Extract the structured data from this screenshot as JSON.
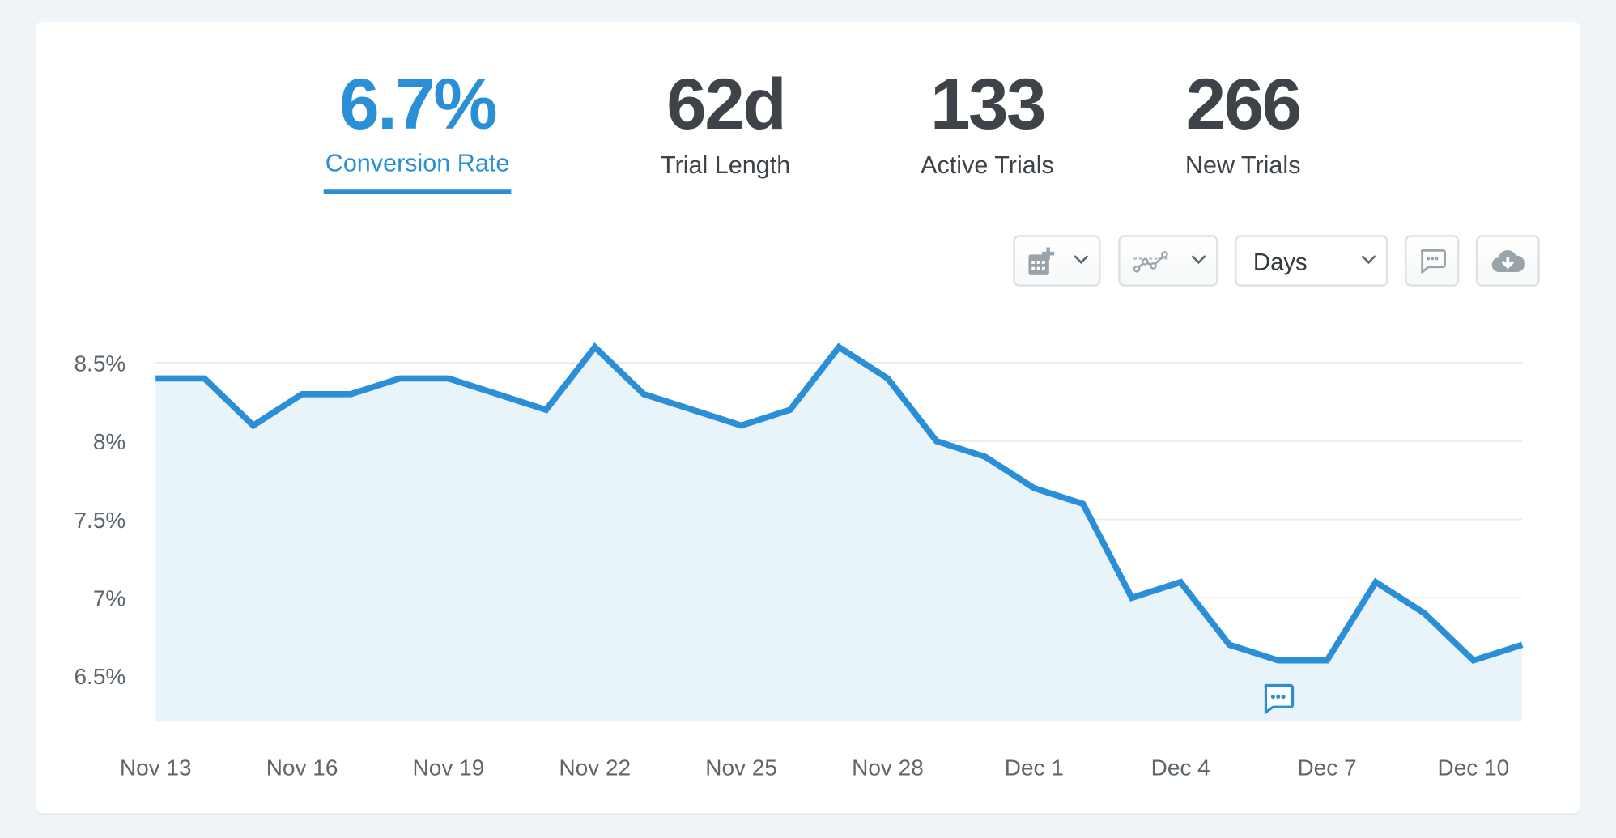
{
  "metrics": [
    {
      "value": "6.7%",
      "label": "Conversion Rate",
      "active": true
    },
    {
      "value": "62d",
      "label": "Trial Length"
    },
    {
      "value": "133",
      "label": "Active Trials"
    },
    {
      "value": "266",
      "label": "New Trials"
    }
  ],
  "toolbar": {
    "interval": "Days",
    "icons": [
      "calendar-add-icon",
      "chart-type-icon",
      "comment-icon",
      "cloud-download-icon"
    ]
  },
  "colors": {
    "accent": "#2a8fd6",
    "text": "#3d4348",
    "fill": "#e8f3fa"
  },
  "chart_data": {
    "type": "area",
    "title": "Conversion Rate",
    "x": [
      "Nov 13",
      "Nov 14",
      "Nov 15",
      "Nov 16",
      "Nov 17",
      "Nov 18",
      "Nov 19",
      "Nov 20",
      "Nov 21",
      "Nov 22",
      "Nov 23",
      "Nov 24",
      "Nov 25",
      "Nov 26",
      "Nov 27",
      "Nov 28",
      "Nov 29",
      "Nov 30",
      "Dec 1",
      "Dec 2",
      "Dec 3",
      "Dec 4",
      "Dec 5",
      "Dec 6",
      "Dec 7",
      "Dec 8",
      "Dec 9",
      "Dec 10",
      "Dec 11"
    ],
    "values": [
      8.4,
      8.4,
      8.1,
      8.3,
      8.3,
      8.4,
      8.4,
      8.3,
      8.2,
      8.6,
      8.3,
      8.2,
      8.1,
      8.2,
      8.6,
      8.4,
      8.0,
      7.9,
      7.7,
      7.6,
      7.0,
      7.1,
      6.7,
      6.6,
      6.6,
      7.1,
      6.9,
      6.6,
      6.7
    ],
    "xticks": [
      "Nov 13",
      "Nov 16",
      "Nov 19",
      "Nov 22",
      "Nov 25",
      "Nov 28",
      "Dec 1",
      "Dec 4",
      "Dec 7",
      "Dec 10"
    ],
    "yticks": [
      6.5,
      7,
      7.5,
      8,
      8.5
    ],
    "ytick_labels": [
      "6.5%",
      "7%",
      "7.5%",
      "8%",
      "8.5%"
    ],
    "ylim": [
      6.2,
      8.7
    ],
    "grid": true,
    "annotations": [
      {
        "x": "Dec 6",
        "type": "comment"
      }
    ]
  }
}
